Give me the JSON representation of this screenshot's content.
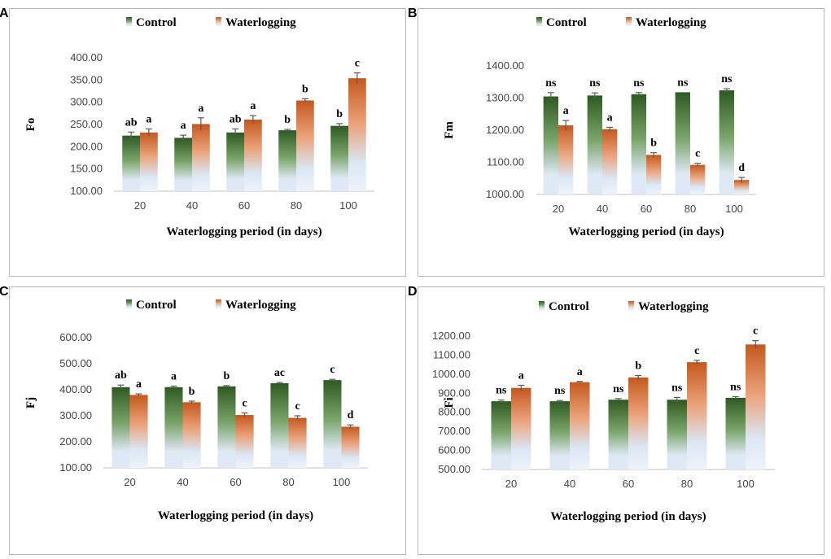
{
  "colors": {
    "control_dark": "#2d5a22",
    "control_mid": "#7aa56a",
    "control_light": "#dfe9f5",
    "water_dark": "#c4581e",
    "water_mid": "#eba27a",
    "water_light": "#dbe7f4",
    "error_bar": "#5a5a5a",
    "panel_border": "#b8b8b8"
  },
  "chart_data": [
    {
      "panel": "A",
      "type": "bar",
      "ylabel": "Fo",
      "xlabel": "Waterlogging period (in days)",
      "categories": [
        "20",
        "40",
        "60",
        "80",
        "100"
      ],
      "ylim": [
        100,
        400
      ],
      "yticks": [
        "100.00",
        "150.00",
        "200.00",
        "250.00",
        "300.00",
        "350.00",
        "400.00"
      ],
      "series": [
        {
          "name": "Control",
          "values": [
            225,
            220,
            232,
            237,
            247
          ],
          "errors": [
            8,
            6,
            8,
            2,
            5
          ],
          "labels": [
            "ab",
            "a",
            "ab",
            "b",
            "b"
          ]
        },
        {
          "name": "Waterlogging",
          "values": [
            232,
            251,
            261,
            304,
            354
          ],
          "errors": [
            8,
            14,
            9,
            4,
            12
          ],
          "labels": [
            "a",
            "a",
            "a",
            "b",
            "c"
          ]
        }
      ]
    },
    {
      "panel": "B",
      "type": "bar",
      "ylabel": "Fm",
      "xlabel": "Waterlogging period (in days)",
      "categories": [
        "20",
        "40",
        "60",
        "80",
        "100"
      ],
      "ylim": [
        1000,
        1400
      ],
      "yticks": [
        "1000.00",
        "1100.00",
        "1200.00",
        "1300.00",
        "1400.00"
      ],
      "series": [
        {
          "name": "Control",
          "values": [
            1305,
            1308,
            1312,
            1318,
            1324
          ],
          "errors": [
            12,
            8,
            5,
            0,
            5
          ],
          "labels": [
            "ns",
            "ns",
            "ns",
            "ns",
            "ns"
          ]
        },
        {
          "name": "Waterlogging",
          "values": [
            1215,
            1203,
            1123,
            1092,
            1045
          ],
          "errors": [
            15,
            6,
            7,
            5,
            8
          ],
          "labels": [
            "a",
            "a",
            "b",
            "c",
            "d"
          ]
        }
      ]
    },
    {
      "panel": "C",
      "type": "bar",
      "ylabel": "Fj",
      "xlabel": "Waterlogging period (in days)",
      "categories": [
        "20",
        "40",
        "60",
        "80",
        "100"
      ],
      "ylim": [
        100,
        600
      ],
      "yticks": [
        "100.00",
        "200.00",
        "300.00",
        "400.00",
        "500.00",
        "600.00"
      ],
      "series": [
        {
          "name": "Control",
          "values": [
            410,
            410,
            413,
            425,
            437
          ],
          "errors": [
            8,
            4,
            3,
            3,
            3
          ],
          "labels": [
            "ab",
            "a",
            "b",
            "ac",
            "c"
          ]
        },
        {
          "name": "Waterlogging",
          "values": [
            380,
            352,
            303,
            292,
            258
          ],
          "errors": [
            4,
            4,
            8,
            8,
            7
          ],
          "labels": [
            "a",
            "b",
            "c",
            "c",
            "d"
          ]
        }
      ]
    },
    {
      "panel": "D",
      "type": "bar",
      "ylabel": "Fi",
      "xlabel": "Waterlogging period (in days)",
      "categories": [
        "20",
        "40",
        "60",
        "80",
        "100"
      ],
      "ylim": [
        500,
        1200
      ],
      "yticks": [
        "500.00",
        "600.00",
        "700.00",
        "800.00",
        "900.00",
        "1000.00",
        "1100.00",
        "1200.00"
      ],
      "series": [
        {
          "name": "Control",
          "values": [
            858,
            858,
            866,
            866,
            876
          ],
          "errors": [
            6,
            4,
            6,
            12,
            6
          ],
          "labels": [
            "ns",
            "ns",
            "ns",
            "ns",
            "ns"
          ]
        },
        {
          "name": "Waterlogging",
          "values": [
            928,
            958,
            983,
            1063,
            1156
          ],
          "errors": [
            14,
            4,
            10,
            10,
            20
          ],
          "labels": [
            "a",
            "a",
            "b",
            "c",
            "c"
          ]
        }
      ]
    }
  ]
}
